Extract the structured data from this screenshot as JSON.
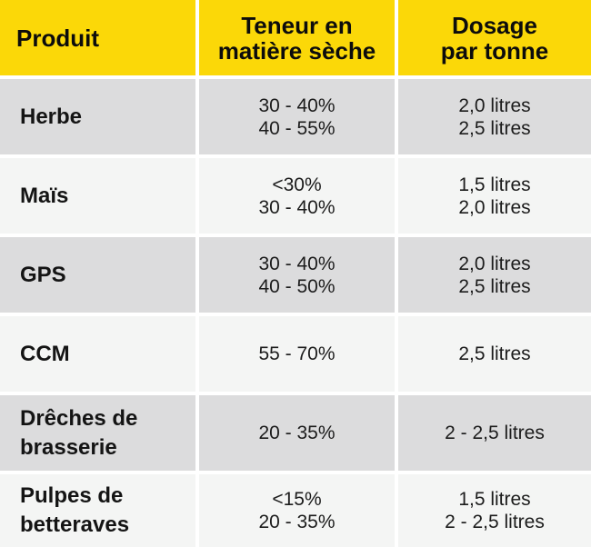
{
  "table": {
    "headers": {
      "product": "Produit",
      "dry_matter": "Teneur en\nmatière sèche",
      "dosage": "Dosage\npar tonne"
    },
    "colors": {
      "header_bg": "#fbd808",
      "row_gray": "#dcdcdd",
      "row_light": "#f4f5f4"
    },
    "rows": [
      {
        "product": "Herbe",
        "dry_matter": "30 - 40%\n40 - 55%",
        "dosage": "2,0 litres\n2,5 litres"
      },
      {
        "product": "Maïs",
        "dry_matter": "<30%\n30 - 40%",
        "dosage": "1,5 litres\n2,0 litres"
      },
      {
        "product": "GPS",
        "dry_matter": "30 - 40%\n40 - 50%",
        "dosage": "2,0 litres\n2,5 litres"
      },
      {
        "product": "CCM",
        "dry_matter": "55 - 70%",
        "dosage": "2,5 litres"
      },
      {
        "product": "Drêches de\nbrasserie",
        "dry_matter": "20 - 35%",
        "dosage": "2 - 2,5 litres"
      },
      {
        "product": "Pulpes de\nbetteraves",
        "dry_matter": "<15%\n20 - 35%",
        "dosage": "1,5 litres\n2 - 2,5 litres"
      }
    ]
  }
}
